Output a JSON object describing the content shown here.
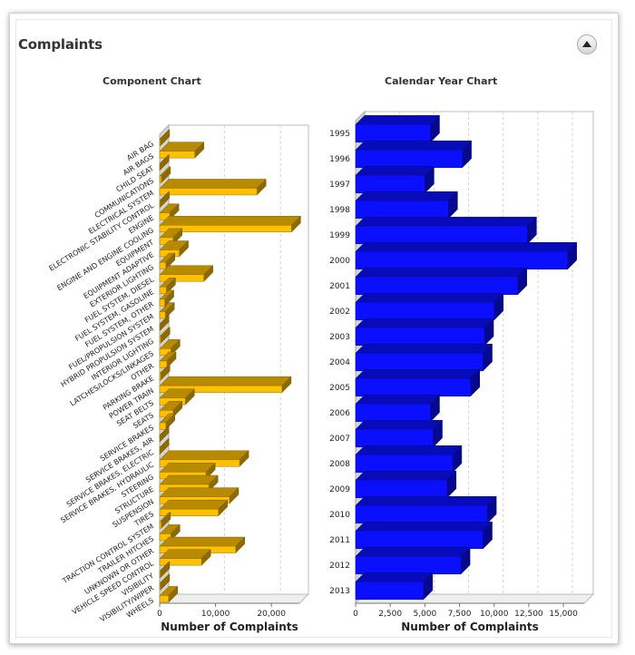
{
  "panel": {
    "title": "Complaints"
  },
  "chart_data": [
    {
      "type": "bar",
      "orientation": "horizontal",
      "title": "Component Chart",
      "xlabel": "Number of Complaints",
      "xlim": [
        0,
        25000
      ],
      "xticks": [
        "0",
        "10,000",
        "20,000"
      ],
      "xtick_values": [
        0,
        10000,
        20000
      ],
      "grid": true,
      "bar_color": "#ffc000",
      "categories": [
        "AIR BAG",
        "AIR BAGS",
        "CHILD SEAT",
        "COMMUNICATIONS",
        "ELECTRICAL SYSTEM",
        "ELECTRONIC STABILITY CONTROL",
        "ENGINE",
        "ENGINE AND ENGINE COOLING",
        "EQUIPMENT",
        "EQUIPMENT ADAPTIVE",
        "EXTERIOR LIGHTING",
        "FUEL SYSTEM, DIESEL",
        "FUEL SYSTEM, GASOLINE",
        "FUEL SYSTEM, OTHER",
        "FUEL/PROPULSION SYSTEM",
        "HYBRID PROPULSION SYSTEM",
        "INTERIOR LIGHTING",
        "LATCHES/LOCKS/LINKAGES",
        "OTHER",
        "PARKING BRAKE",
        "POWER TRAIN",
        "SEAT BELTS",
        "SEATS",
        "SERVICE BRAKES",
        "SERVICE BRAKES, AIR",
        "SERVICE BRAKES, ELECTRIC",
        "SERVICE BRAKES, HYDRAULIC",
        "STEERING",
        "STRUCTURE",
        "SUSPENSION",
        "TIRES",
        "TRACTION CONTROL SYSTEM",
        "TRAILER HITCHES",
        "UNKNOWN OR OTHER",
        "VEHICLE SPEED CONTROL",
        "VISIBILITY",
        "VISIBILITY/WIPER",
        "WHEELS"
      ],
      "values": [
        150,
        6300,
        50,
        300,
        17400,
        100,
        1800,
        23600,
        2400,
        3500,
        1100,
        7900,
        1200,
        900,
        1000,
        40,
        200,
        2000,
        1300,
        200,
        21900,
        4600,
        2400,
        1100,
        20,
        30,
        14300,
        8300,
        8800,
        12500,
        10500,
        300,
        2000,
        13600,
        7500,
        150,
        150,
        1600
      ]
    },
    {
      "type": "bar",
      "orientation": "horizontal",
      "title": "Calendar Year Chart",
      "xlabel": "Number of Complaints",
      "xlim": [
        0,
        16500
      ],
      "xticks": [
        "0",
        "2,500",
        "5,000",
        "7,500",
        "10,000",
        "12,500",
        "15,000"
      ],
      "xtick_values": [
        0,
        2500,
        5000,
        7500,
        10000,
        12500,
        15000
      ],
      "grid": true,
      "bar_color": "#0a10ff",
      "categories": [
        "1995",
        "1996",
        "1997",
        "1998",
        "1999",
        "2000",
        "2001",
        "2002",
        "2003",
        "2004",
        "2005",
        "2006",
        "2007",
        "2008",
        "2009",
        "2010",
        "2011",
        "2012",
        "2013"
      ],
      "values": [
        5400,
        7700,
        5000,
        6700,
        12400,
        15300,
        11700,
        10000,
        9300,
        9200,
        8300,
        5400,
        5600,
        7000,
        6600,
        9500,
        9200,
        7600,
        4900
      ]
    }
  ]
}
